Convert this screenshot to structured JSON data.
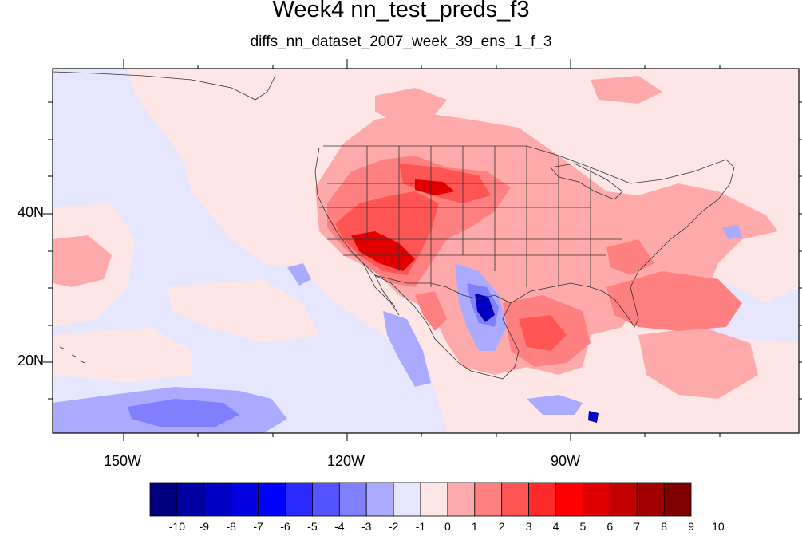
{
  "title": "Week4 nn_test_preds_f3",
  "subtitle": "diffs_nn_dataset_2007_week_39_ens_1_f_3",
  "axes": {
    "lat_labels": [
      "40N",
      "20N"
    ],
    "lon_labels": [
      "150W",
      "120W",
      "90W"
    ]
  },
  "colorbar": {
    "labels": [
      "-10",
      "-9",
      "-8",
      "-7",
      "-6",
      "-5",
      "-4",
      "-3",
      "-2",
      "-1",
      "0",
      "1",
      "2",
      "3",
      "4",
      "5",
      "6",
      "7",
      "8",
      "9",
      "10"
    ],
    "colors": [
      "#00007f",
      "#0000a0",
      "#0000c2",
      "#0000e0",
      "#0000ff",
      "#2a2aff",
      "#5555ff",
      "#8080ff",
      "#aaaaff",
      "#e6e6ff",
      "#ffe6e6",
      "#ffaaaa",
      "#ff8080",
      "#ff5555",
      "#ff2a2a",
      "#ff0000",
      "#e00000",
      "#c20000",
      "#a00000",
      "#7f0000"
    ]
  },
  "palette": {
    "ocean_neutral": "#e6e6ff",
    "land_neutral": "#ffe6e6",
    "warm_light": "#ffaaaa",
    "warm_mid": "#ff8080",
    "warm_strong": "#ff5555",
    "warm_deep": "#e00000",
    "cool_light": "#aaaaff",
    "cool_mid": "#8080ff",
    "cool_deep": "#0000c2"
  }
}
